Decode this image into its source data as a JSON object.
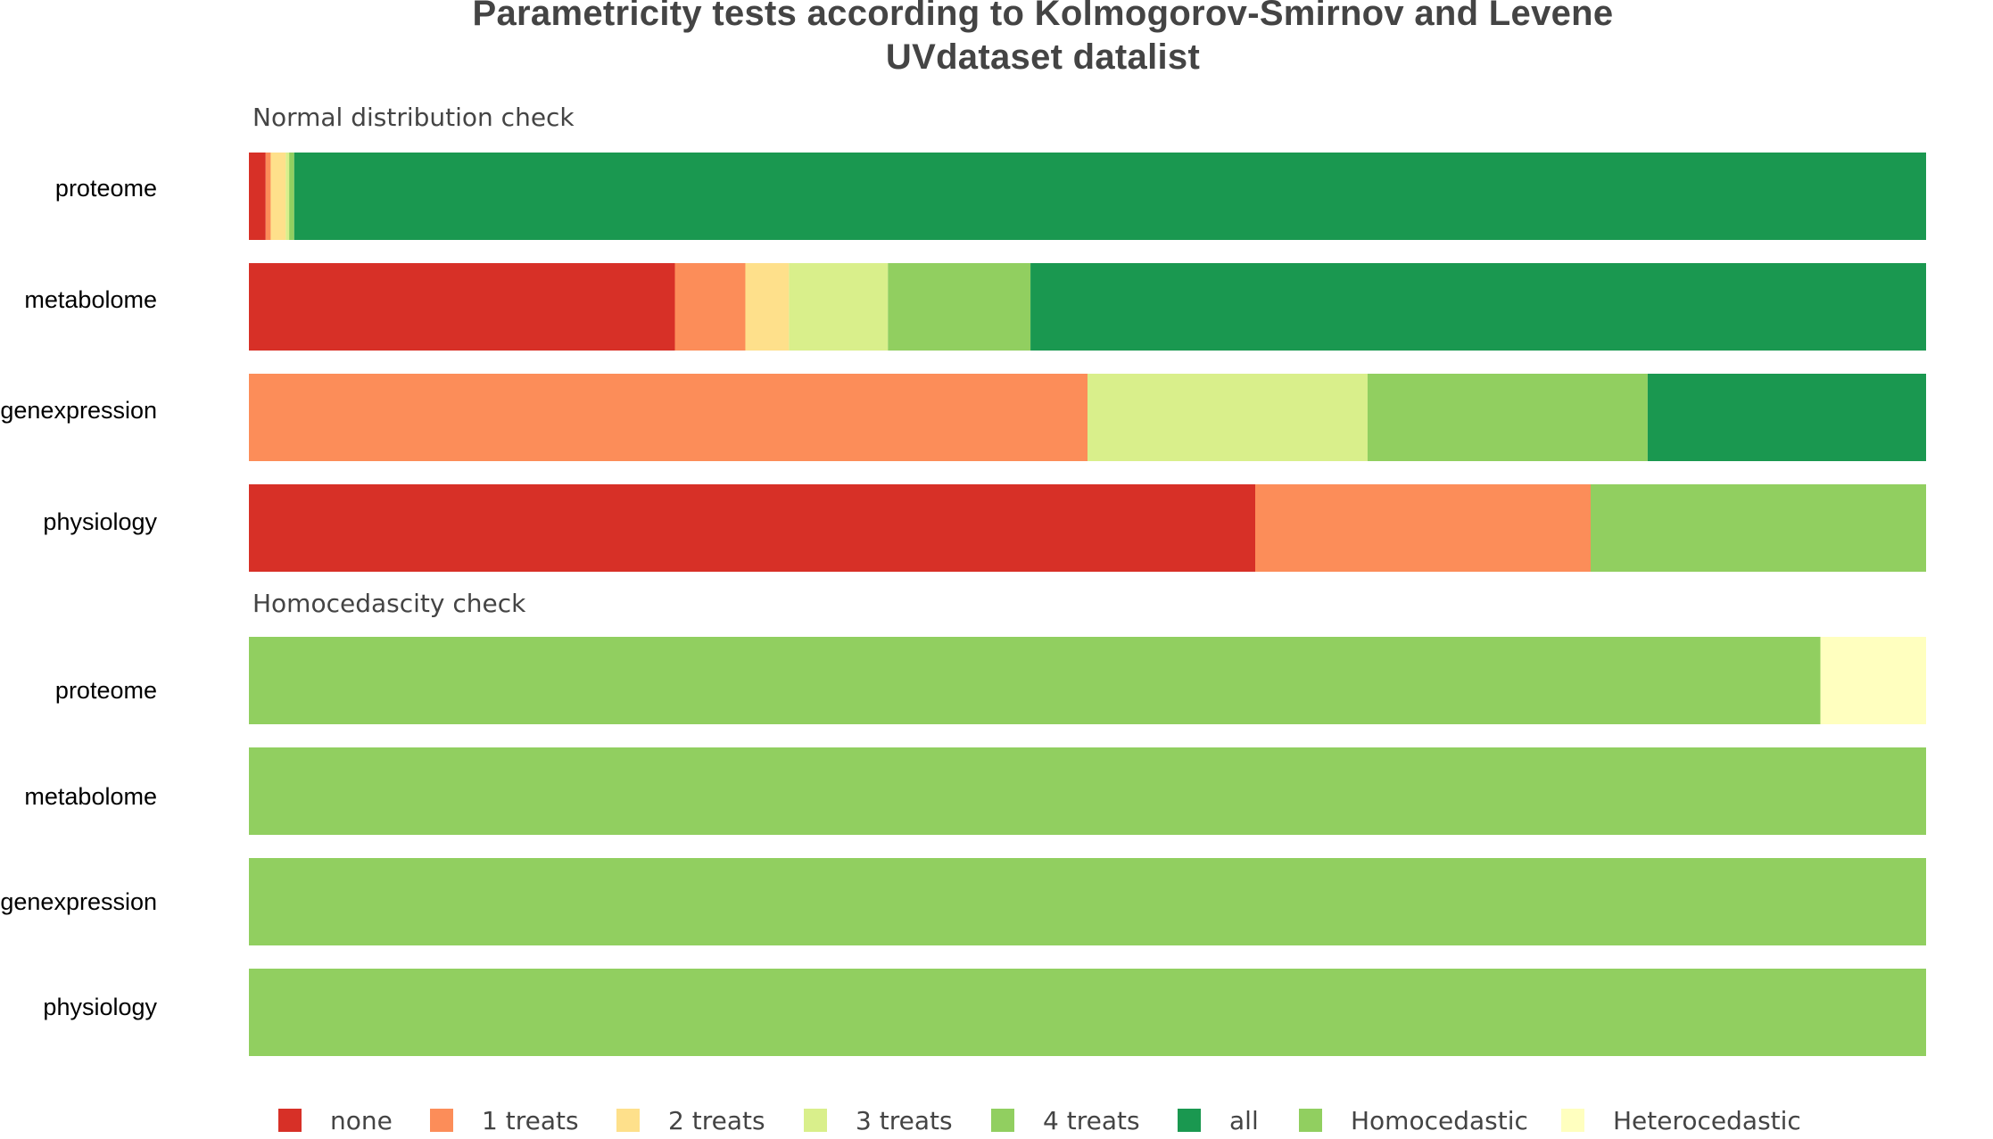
{
  "chart_data": {
    "type": "bar",
    "orientation": "horizontal",
    "stacked": true,
    "normalized": true,
    "title": "Parametricity tests according to Kolmogorov-Smirnov and Levene",
    "subtitle": "UVdataset datalist",
    "panels": [
      {
        "heading": "Normal distribution check",
        "categories": [
          "proteome",
          "metabolome",
          "genexpression",
          "physiology"
        ],
        "series": [
          {
            "name": "none",
            "color": "#d73027",
            "values": [
              0.01,
              0.254,
              0.0,
              0.6
            ]
          },
          {
            "name": "1 treats",
            "color": "#fc8d59",
            "values": [
              0.003,
              0.042,
              0.5,
              0.2
            ]
          },
          {
            "name": "2 treats",
            "color": "#fee08b",
            "values": [
              0.009,
              0.026,
              0.0,
              0.0
            ]
          },
          {
            "name": "3 treats",
            "color": "#d9ef8b",
            "values": [
              0.002,
              0.059,
              0.167,
              0.0
            ]
          },
          {
            "name": "4 treats",
            "color": "#91cf60",
            "values": [
              0.003,
              0.085,
              0.167,
              0.2
            ]
          },
          {
            "name": "all",
            "color": "#1a9850",
            "values": [
              0.973,
              0.534,
              0.166,
              0.0
            ]
          }
        ]
      },
      {
        "heading": "Homocedascity check",
        "categories": [
          "proteome",
          "metabolome",
          "genexpression",
          "physiology"
        ],
        "series": [
          {
            "name": "Homocedastic",
            "color": "#91cf60",
            "values": [
              0.937,
              1.0,
              1.0,
              1.0
            ]
          },
          {
            "name": "Heterocedastic",
            "color": "#ffffbf",
            "values": [
              0.063,
              0.0,
              0.0,
              0.0
            ]
          }
        ]
      }
    ],
    "xlim": [
      0,
      1
    ],
    "grid": false,
    "legend_position": "bottom",
    "legend": [
      {
        "label": "none",
        "color": "#d73027"
      },
      {
        "label": "1 treats",
        "color": "#fc8d59"
      },
      {
        "label": "2 treats",
        "color": "#fee08b"
      },
      {
        "label": "3 treats",
        "color": "#d9ef8b"
      },
      {
        "label": "4 treats",
        "color": "#91cf60"
      },
      {
        "label": "all",
        "color": "#1a9850"
      },
      {
        "label": "Homocedastic",
        "color": "#91cf60"
      },
      {
        "label": "Heterocedastic",
        "color": "#ffffbf"
      }
    ]
  }
}
